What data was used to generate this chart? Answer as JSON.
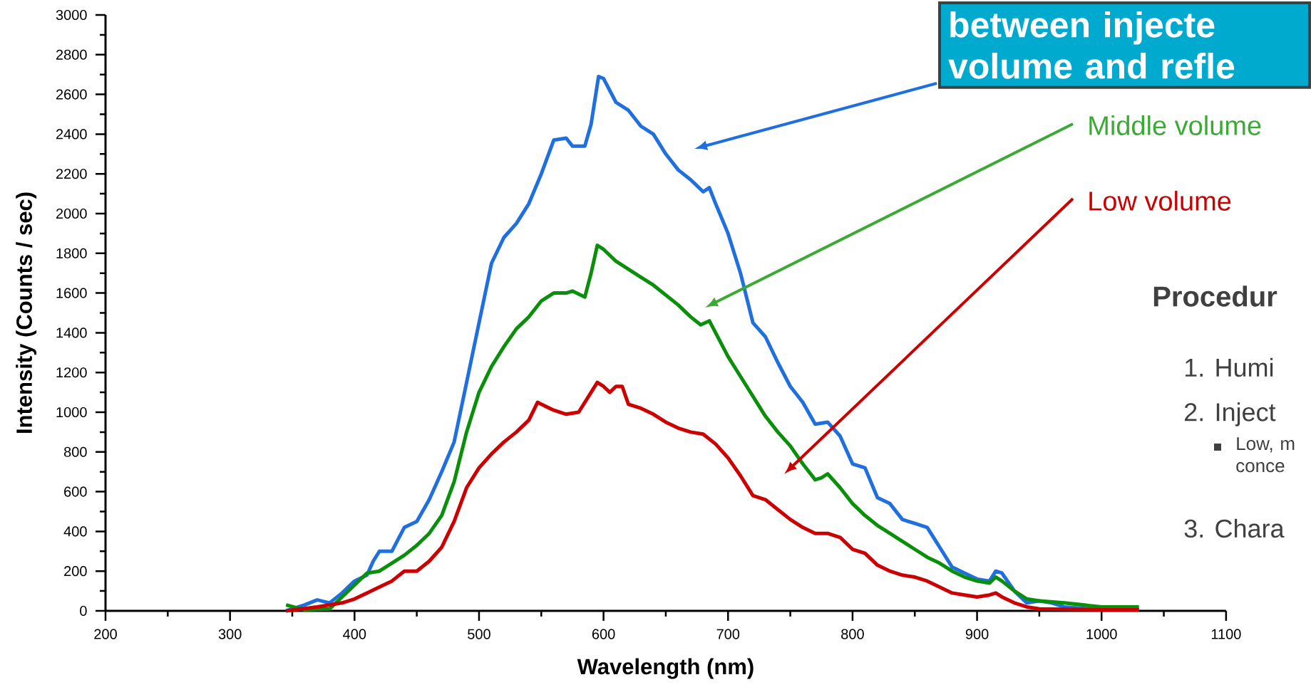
{
  "chart_data": {
    "type": "line",
    "title": "between injecte volume and refle",
    "xlabel": "Wavelength (nm)",
    "ylabel": "Intensity (Counts / sec)",
    "xlim": [
      200,
      1100
    ],
    "ylim": [
      0,
      3000
    ],
    "xticks": [
      200,
      300,
      400,
      500,
      600,
      700,
      800,
      900,
      1000,
      1100
    ],
    "yticks": [
      0,
      200,
      400,
      600,
      800,
      1000,
      1200,
      1400,
      1600,
      1800,
      2000,
      2200,
      2400,
      2600,
      2800,
      3000
    ],
    "marker": "none",
    "line_style": "solid",
    "series": [
      {
        "color": "#1f6fde",
        "x": [
          345,
          360,
          370,
          380,
          390,
          400,
          410,
          415,
          420,
          430,
          440,
          450,
          460,
          470,
          480,
          490,
          500,
          510,
          520,
          530,
          540,
          550,
          560,
          570,
          575,
          585,
          590,
          596,
          600,
          610,
          620,
          630,
          640,
          650,
          660,
          670,
          680,
          685,
          690,
          700,
          710,
          720,
          730,
          740,
          750,
          760,
          770,
          780,
          790,
          800,
          810,
          820,
          830,
          840,
          850,
          860,
          870,
          880,
          890,
          900,
          910,
          915,
          920,
          930,
          940,
          950,
          960,
          970,
          1000,
          1030
        ],
        "values": [
          0,
          30,
          55,
          40,
          90,
          150,
          180,
          250,
          300,
          300,
          420,
          450,
          560,
          700,
          850,
          1150,
          1450,
          1750,
          1880,
          1950,
          2050,
          2200,
          2370,
          2380,
          2340,
          2340,
          2450,
          2690,
          2680,
          2560,
          2520,
          2440,
          2400,
          2300,
          2220,
          2170,
          2110,
          2130,
          2050,
          1900,
          1700,
          1450,
          1380,
          1250,
          1130,
          1050,
          940,
          950,
          880,
          740,
          720,
          570,
          540,
          460,
          440,
          420,
          320,
          220,
          190,
          160,
          150,
          200,
          190,
          100,
          40,
          50,
          40,
          20,
          5,
          5
        ]
      },
      {
        "name": "Middle volume",
        "color": "#0a8f0a",
        "x": [
          345,
          360,
          380,
          400,
          410,
          420,
          430,
          440,
          450,
          460,
          470,
          480,
          490,
          500,
          510,
          520,
          530,
          540,
          550,
          560,
          570,
          575,
          585,
          590,
          595,
          600,
          610,
          620,
          630,
          640,
          650,
          660,
          670,
          678,
          685,
          690,
          700,
          710,
          720,
          730,
          740,
          750,
          760,
          770,
          775,
          780,
          790,
          800,
          810,
          820,
          830,
          840,
          850,
          860,
          870,
          880,
          890,
          900,
          910,
          915,
          920,
          930,
          940,
          950,
          970,
          1000,
          1030
        ],
        "values": [
          30,
          5,
          10,
          130,
          190,
          200,
          240,
          280,
          330,
          390,
          480,
          650,
          900,
          1100,
          1230,
          1330,
          1420,
          1480,
          1560,
          1600,
          1600,
          1610,
          1580,
          1700,
          1840,
          1820,
          1760,
          1720,
          1680,
          1640,
          1590,
          1540,
          1480,
          1440,
          1460,
          1400,
          1280,
          1180,
          1080,
          980,
          900,
          830,
          740,
          660,
          670,
          690,
          620,
          540,
          480,
          430,
          390,
          350,
          310,
          270,
          240,
          200,
          170,
          150,
          140,
          170,
          150,
          100,
          60,
          50,
          40,
          20,
          20
        ]
      },
      {
        "name": "Low volume",
        "color": "#cc0000",
        "x": [
          345,
          370,
          390,
          400,
          410,
          420,
          430,
          440,
          450,
          460,
          470,
          480,
          490,
          500,
          510,
          520,
          530,
          540,
          547,
          550,
          560,
          570,
          580,
          590,
          595,
          600,
          605,
          610,
          615,
          620,
          630,
          640,
          650,
          660,
          670,
          680,
          690,
          700,
          710,
          720,
          730,
          740,
          750,
          760,
          770,
          780,
          790,
          800,
          810,
          820,
          830,
          840,
          850,
          860,
          870,
          880,
          890,
          900,
          910,
          915,
          920,
          930,
          940,
          950,
          1000,
          1030
        ],
        "values": [
          0,
          20,
          40,
          60,
          90,
          120,
          150,
          200,
          200,
          250,
          320,
          450,
          620,
          720,
          790,
          850,
          900,
          960,
          1050,
          1040,
          1010,
          990,
          1000,
          1100,
          1150,
          1130,
          1100,
          1130,
          1130,
          1040,
          1020,
          990,
          950,
          920,
          900,
          890,
          840,
          770,
          680,
          580,
          560,
          510,
          460,
          420,
          390,
          390,
          370,
          310,
          290,
          230,
          200,
          180,
          170,
          150,
          120,
          90,
          80,
          70,
          80,
          90,
          70,
          40,
          20,
          10,
          5,
          5
        ]
      }
    ],
    "annotations": [
      "Procedur",
      "1.  Humi",
      "2.  Inject",
      "Low, m conce",
      "3.  Chara"
    ]
  }
}
